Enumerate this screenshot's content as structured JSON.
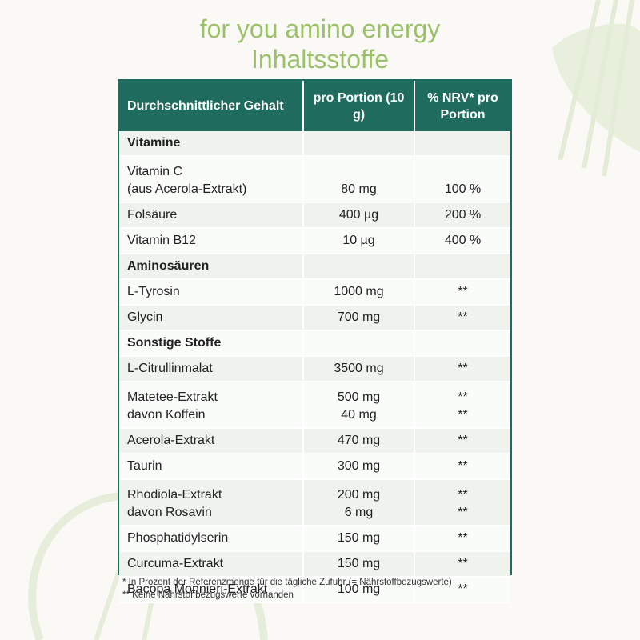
{
  "title_line1": "for you amino energy",
  "title_line2": "Inhaltsstoffe",
  "header": {
    "col1": "Durchschnittlicher Gehalt",
    "col2": "pro Portion (10 g)",
    "col3": "% NRV* pro Portion"
  },
  "rows": [
    {
      "name": "Vitamine",
      "section": true
    },
    {
      "name": "Vitamin C",
      "name2": "(aus Acerola-Extrakt)",
      "amount": "80 mg",
      "nrv": "100 %"
    },
    {
      "name": "Folsäure",
      "amount": "400 µg",
      "nrv": "200 %"
    },
    {
      "name": "Vitamin B12",
      "amount": "10 µg",
      "nrv": "400 %"
    },
    {
      "name": "Aminosäuren",
      "section": true
    },
    {
      "name": "L-Tyrosin",
      "amount": "1000 mg",
      "nrv": "**"
    },
    {
      "name": "Glycin",
      "amount": "700 mg",
      "nrv": "**"
    },
    {
      "name": "Sonstige Stoffe",
      "section": true
    },
    {
      "name": "L-Citrullinmalat",
      "amount": "3500 mg",
      "nrv": "**"
    },
    {
      "name": "Matetee-Extrakt",
      "name2": "davon Koffein",
      "amount": "500 mg",
      "amount2": "40 mg",
      "nrv": "**",
      "nrv2": "**"
    },
    {
      "name": "Acerola-Extrakt",
      "amount": "470 mg",
      "nrv": "**"
    },
    {
      "name": "Taurin",
      "amount": "300 mg",
      "nrv": "**"
    },
    {
      "name": "Rhodiola-Extrakt",
      "name2": "davon Rosavin",
      "amount": "200 mg",
      "amount2": "6 mg",
      "nrv": "**",
      "nrv2": "**"
    },
    {
      "name": "Phosphatidylserin",
      "amount": "150 mg",
      "nrv": "**"
    },
    {
      "name": "Curcuma-Extrakt",
      "amount": "150 mg",
      "nrv": "**"
    },
    {
      "name": "Bacopa Monnieri-Extrakt",
      "amount": "100 mg",
      "nrv": "**"
    }
  ],
  "footnote1": "* In Prozent der Referenzmenge für die tägliche Zufuhr (= Nährstoffbezugswerte)",
  "footnote2": "** Keine Nährstoffbezugswerte vorhanden",
  "colors": {
    "header_bg": "#1f6c5e",
    "title": "#9bc26a",
    "row_alt": "#eef3ee"
  }
}
